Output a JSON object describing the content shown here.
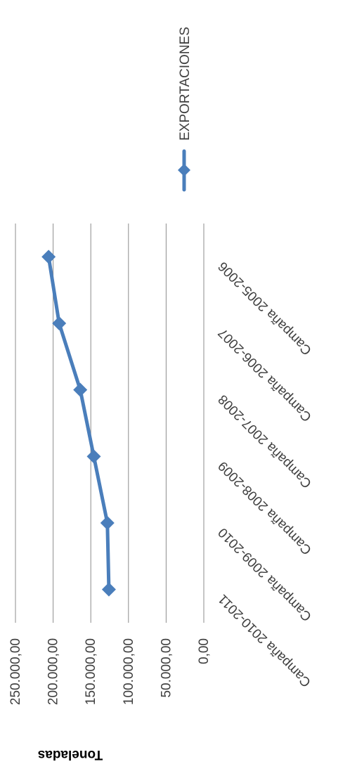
{
  "chart_data": {
    "type": "line",
    "title": "",
    "xlabel": "",
    "ylabel": "Toneladas",
    "ylim": [
      0,
      250000
    ],
    "y_ticks": [
      0,
      50000,
      100000,
      150000,
      200000,
      250000
    ],
    "y_tick_labels": [
      "0,00",
      "50.000,00",
      "100.000,00",
      "150.000,00",
      "200.000,00",
      "250.000,00"
    ],
    "categories": [
      "Campaña 2005-2006",
      "Campaña 2006-2007",
      "Campaña 2007-2008",
      "Campaña 2008-2009",
      "Campaña 2009-2010",
      "Campaña 2010-2011"
    ],
    "series": [
      {
        "name": "EXPORTACIONES",
        "color": "#4a7ebb",
        "values": [
          206000,
          192000,
          164000,
          146000,
          128000,
          126000
        ]
      }
    ],
    "grid": true,
    "legend_position": "right",
    "orientation": "rotated-90-clockwise"
  }
}
